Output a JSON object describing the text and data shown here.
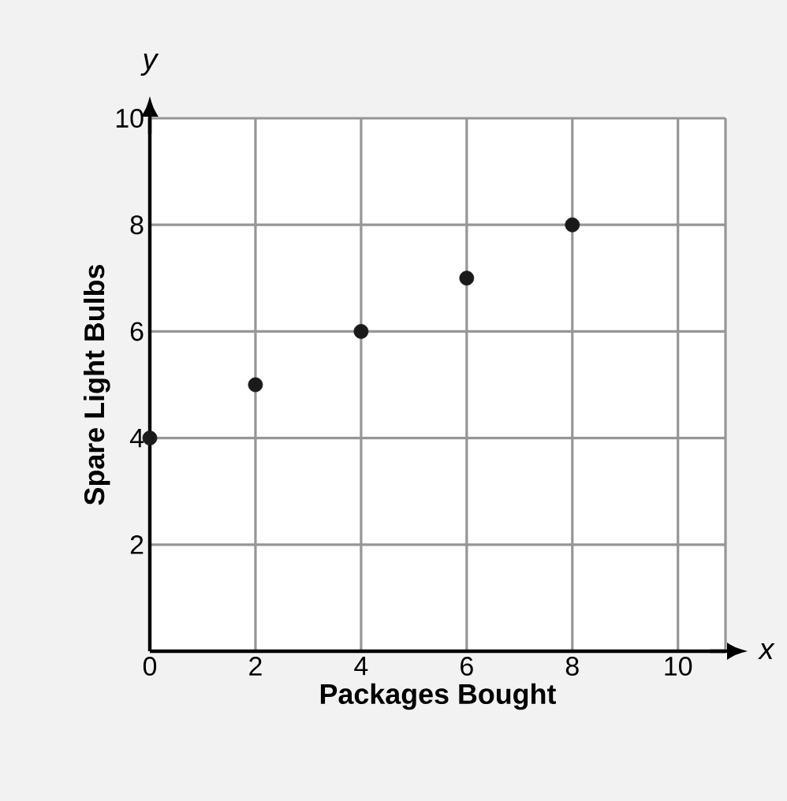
{
  "chart_data": {
    "type": "scatter",
    "xlabel": "Packages Bought",
    "ylabel": "Spare Light Bulbs",
    "annotations": [
      "x",
      "y"
    ],
    "x": [
      0,
      2,
      4,
      6,
      8
    ],
    "series": [
      {
        "color": "#1a1a1a",
        "values": [
          4,
          5,
          6,
          7,
          8
        ]
      }
    ],
    "xlim": [
      0,
      10.9
    ],
    "ylim": [
      0,
      10
    ],
    "xticks": [
      0,
      2,
      4,
      6,
      8,
      10
    ],
    "yticks": [
      2,
      4,
      6,
      8,
      10
    ],
    "grid": true
  }
}
